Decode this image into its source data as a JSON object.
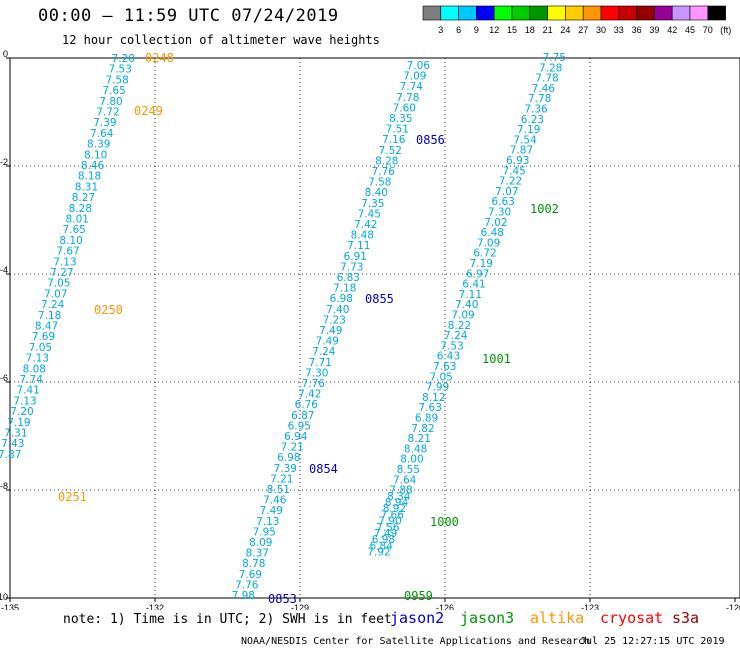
{
  "title": "00:00 – 11:59 UTC 07/24/2019",
  "subtitle": "12 hour collection of altimeter wave heights",
  "legend": {
    "unit": "(ft)",
    "swatches": [
      {
        "color": "#7f7f7f",
        "label": "3"
      },
      {
        "color": "#00ffff",
        "label": "6"
      },
      {
        "color": "#00c8ff",
        "label": "9"
      },
      {
        "color": "#0000ff",
        "label": "12"
      },
      {
        "color": "#00ff00",
        "label": "15"
      },
      {
        "color": "#00cc00",
        "label": "18"
      },
      {
        "color": "#009600",
        "label": "21"
      },
      {
        "color": "#ffff00",
        "label": "24"
      },
      {
        "color": "#ffcc00",
        "label": "27"
      },
      {
        "color": "#ff9600",
        "label": "30"
      },
      {
        "color": "#ff0000",
        "label": "33"
      },
      {
        "color": "#c80000",
        "label": "36"
      },
      {
        "color": "#960000",
        "label": "39"
      },
      {
        "color": "#960096",
        "label": "42"
      },
      {
        "color": "#c896ff",
        "label": "45"
      },
      {
        "color": "#ff96ff",
        "label": "70"
      },
      {
        "color": "#000000",
        "label": ""
      }
    ]
  },
  "axes": {
    "x_ticks": [
      "-135",
      "-132",
      "-129",
      "-126",
      "-123",
      "-120"
    ],
    "y_ticks": [
      "0",
      "-2",
      "-4",
      "-6",
      "-8",
      "-10"
    ]
  },
  "value_color": "#00aadd",
  "tracks": [
    {
      "values": [
        "7.20",
        "7.53",
        "7.58",
        "7.65",
        "7.80",
        "7.72",
        "7.39",
        "7.64",
        "8.39",
        "8.10",
        "8.46",
        "8.18",
        "8.31",
        "8.27",
        "8.28",
        "8.01",
        "7.65",
        "8.10",
        "7.67",
        "7.13",
        "7.27",
        "7.05",
        "7.07",
        "7.24",
        "7.18",
        "8.47",
        "7.69",
        "7.05",
        "7.13",
        "8.08",
        "7.74",
        "7.41",
        "7.13",
        "7.20",
        "7.19",
        "7.31",
        "7.43",
        "7.87"
      ]
    },
    {
      "values": [
        "7.06",
        "7.09",
        "7.74",
        "7.78",
        "7.60",
        "8.35",
        "7.51",
        "7.16",
        "7.52",
        "8.28",
        "7.76",
        "7.58",
        "8.40",
        "7.35",
        "7.45",
        "7.42",
        "8.48",
        "7.11",
        "6.91",
        "7.73",
        "6.83",
        "7.18",
        "6.98",
        "7.40",
        "7.23",
        "7.49",
        "7.49",
        "7.24",
        "7.71",
        "7.30",
        "7.76",
        "7.42",
        "6.76",
        "6.87",
        "6.95",
        "6.94",
        "7.21",
        "6.98",
        "7.39",
        "7.21",
        "8.51",
        "7.46",
        "7.49",
        "7.13",
        "7.95",
        "8.09",
        "8.37",
        "8.78",
        "7.69",
        "7.76",
        "7.98"
      ]
    },
    {
      "values": [
        "7.75",
        "7.28",
        "7.78",
        "7.46",
        "7.78",
        "7.36",
        "6.23",
        "7.19",
        "7.54",
        "7.87",
        "6.93",
        "7.45",
        "7.22",
        "7.07",
        "6.63",
        "7.30",
        "7.02",
        "6.48",
        "7.09",
        "6.72",
        "7.19",
        "6.97",
        "6.41",
        "7.11",
        "7.40",
        "7.09",
        "8.22",
        "7.24",
        "7.53",
        "6.43",
        "7.63",
        "7.05",
        "7.99",
        "8.12",
        "7.63",
        "6.89",
        "7.82",
        "8.21",
        "8.48",
        "8.00",
        "8.55",
        "7.64",
        "7.88",
        "8.34",
        "8.94",
        "8.92",
        "7.66",
        "7.90",
        "7.56",
        "7.49",
        "6.98",
        "6.84",
        "7.92"
      ]
    }
  ],
  "time_labels": [
    {
      "text": "0248",
      "sat": "altika"
    },
    {
      "text": "0249",
      "sat": "altika"
    },
    {
      "text": "0250",
      "sat": "altika"
    },
    {
      "text": "0251",
      "sat": "altika"
    },
    {
      "text": "0856",
      "sat": "jason2"
    },
    {
      "text": "0855",
      "sat": "jason2"
    },
    {
      "text": "0854",
      "sat": "jason2"
    },
    {
      "text": "0853",
      "sat": "jason2"
    },
    {
      "text": "1002",
      "sat": "jason3"
    },
    {
      "text": "1001",
      "sat": "jason3"
    },
    {
      "text": "1000",
      "sat": "jason3"
    },
    {
      "text": "0959",
      "sat": "jason3"
    }
  ],
  "sat_colors": {
    "jason2": "#0000cc",
    "jason3": "#009600",
    "altika": "#ff9600",
    "cryosat": "#ff0000",
    "s3a": "#960000"
  },
  "note": "note: 1) Time is in UTC; 2) SWH is in feet",
  "satellites": [
    {
      "name": "jason2",
      "color": "#0000cc"
    },
    {
      "name": "jason3",
      "color": "#009600"
    },
    {
      "name": "altika",
      "color": "#ff9600"
    },
    {
      "name": "cryosat",
      "color": "#ff0000"
    },
    {
      "name": "s3a",
      "color": "#960000"
    }
  ],
  "footer_left": "NOAA/NESDIS Center for Satellite Applications and Research",
  "footer_right": "Jul 25 12:27:15 UTC 2019"
}
